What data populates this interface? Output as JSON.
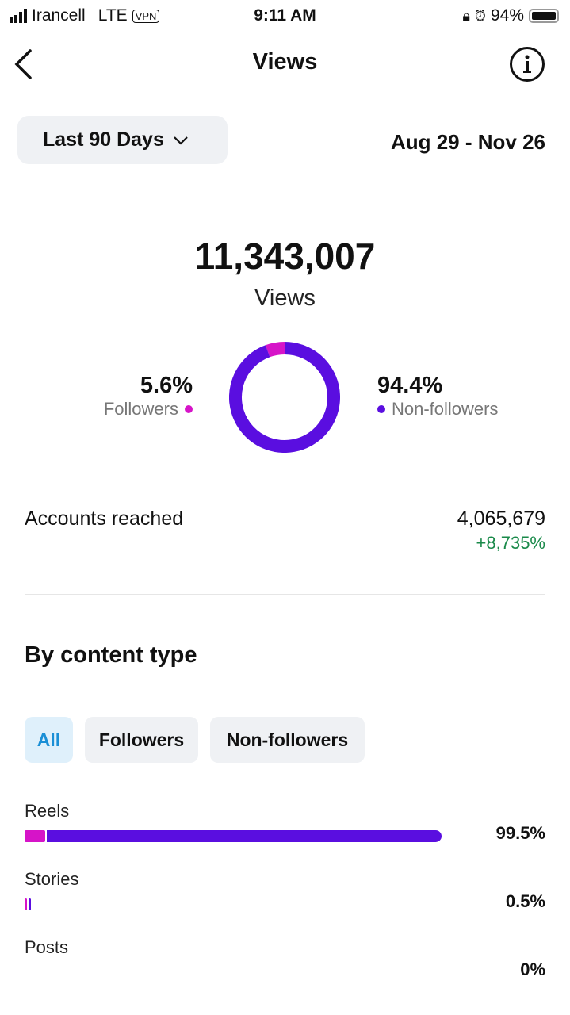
{
  "status_bar": {
    "carrier": "Irancell",
    "network": "LTE",
    "vpn": "VPN",
    "time": "9:11 AM",
    "battery": "94%"
  },
  "header": {
    "title": "Views"
  },
  "filter": {
    "range": "Last 90 Days",
    "dates": "Aug 29 - Nov 26"
  },
  "summary": {
    "total": "11,343,007",
    "label": "Views"
  },
  "chart_data": {
    "type": "pie",
    "donut": true,
    "slices": [
      {
        "name": "Followers",
        "value": 5.6,
        "label": "5.6%",
        "color": "#d614c8"
      },
      {
        "name": "Non-followers",
        "value": 94.4,
        "label": "94.4%",
        "color": "#5a0ee0"
      }
    ]
  },
  "accounts": {
    "label": "Accounts reached",
    "value": "4,065,679",
    "change": "+8,735%",
    "change_color": "#1a8a4a"
  },
  "content": {
    "title": "By content type",
    "chips": [
      "All",
      "Followers",
      "Non-followers"
    ],
    "rows": [
      {
        "label": "Reels",
        "pct": "99.5%",
        "followers": 5,
        "nonfollowers": 94.5
      },
      {
        "label": "Stories",
        "pct": "0.5%",
        "followers": 0.3,
        "nonfollowers": 0.2
      },
      {
        "label": "Posts",
        "pct": "0%",
        "followers": 0,
        "nonfollowers": 0
      }
    ]
  }
}
